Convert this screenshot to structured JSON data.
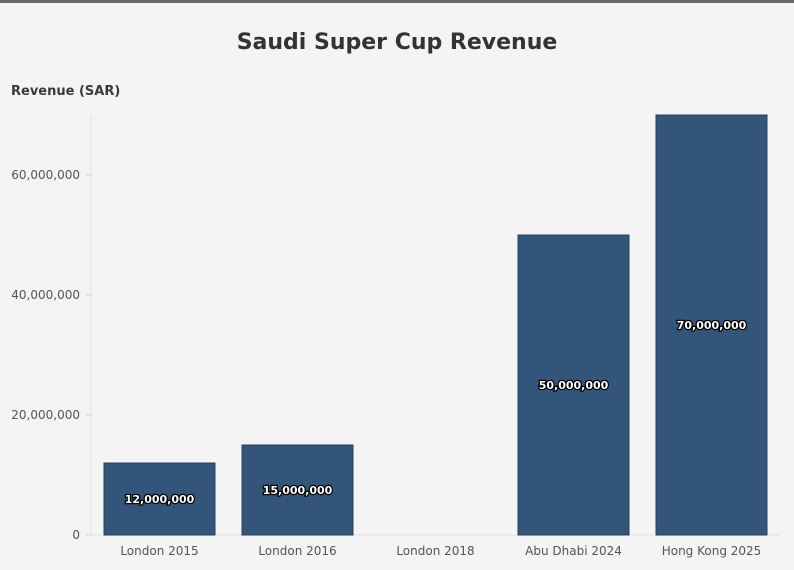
{
  "chart_data": {
    "type": "bar",
    "title": "Saudi Super Cup Revenue",
    "xlabel": "",
    "ylabel": "Revenue (SAR)",
    "categories": [
      "London 2015",
      "London 2016",
      "London 2018",
      "Abu Dhabi 2024",
      "Hong Kong 2025"
    ],
    "values": [
      12000000,
      15000000,
      0,
      50000000,
      70000000
    ],
    "data_labels": [
      "12,000,000",
      "15,000,000",
      "",
      "50,000,000",
      "70,000,000"
    ],
    "yticks": [
      0,
      20000000,
      40000000,
      60000000
    ],
    "ytick_labels": [
      "0",
      "20,000,000",
      "40,000,000",
      "60,000,000"
    ],
    "ylim": [
      0,
      70000000
    ],
    "bar_color": "#34557a",
    "grid": false,
    "legend": "none"
  }
}
